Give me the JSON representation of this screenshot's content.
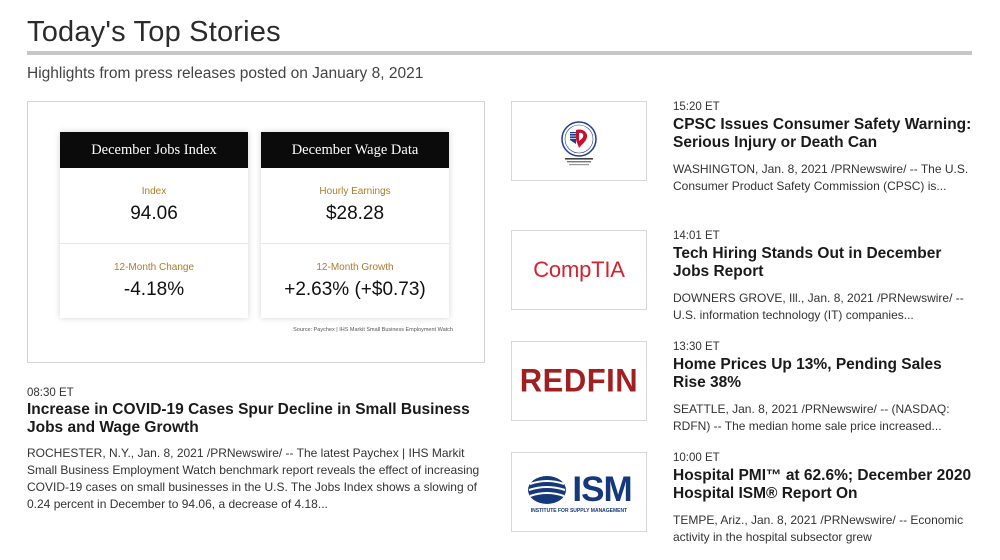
{
  "page": {
    "title": "Today's Top Stories",
    "subtitle": "Highlights from press releases posted on January 8, 2021"
  },
  "featured": {
    "image": {
      "cards": [
        {
          "header": "December Jobs Index",
          "top_label": "Index",
          "top_value": "94.06",
          "bottom_label": "12-Month Change",
          "bottom_value": "-4.18%"
        },
        {
          "header": "December Wage Data",
          "top_label": "Hourly Earnings",
          "top_value": "$28.28",
          "bottom_label": "12-Month Growth",
          "bottom_value": "+2.63% (+$0.73)"
        }
      ],
      "source": "Source: Paychex | IHS Markit Small Business Employment Watch"
    },
    "time": "08:30 ET",
    "headline": "Increase in COVID-19 Cases Spur Decline in Small Business Jobs and Wage Growth",
    "summary": "ROCHESTER, N.Y., Jan. 8, 2021 /PRNewswire/ -- The latest Paychex | IHS Markit Small Business Employment Watch benchmark report reveals the effect of increasing COVID-19 cases on small businesses in the U.S. The Jobs Index shows a slowing of 0.24 percent in December to 94.06, a decrease of 4.18..."
  },
  "stories": [
    {
      "logo": "cpsc-seal-icon",
      "time": "15:20 ET",
      "headline": "CPSC Issues Consumer Safety Warning: Serious Injury or Death Can",
      "summary": "WASHINGTON, Jan. 8, 2021 /PRNewswire/ -- The U.S. Consumer Product Safety Commission (CPSC) is..."
    },
    {
      "logo": "comptia-logo",
      "logo_text": "CompTIA",
      "time": "14:01 ET",
      "headline": "Tech Hiring Stands Out in December Jobs Report",
      "summary": "DOWNERS GROVE, Ill., Jan. 8, 2021 /PRNewswire/ -- U.S. information technology (IT) companies..."
    },
    {
      "logo": "redfin-logo",
      "logo_text": "REDFIN",
      "time": "13:30 ET",
      "headline": "Home Prices Up 13%, Pending Sales Rise 38%",
      "summary": "SEATTLE, Jan. 8, 2021 /PRNewswire/ -- (NASDAQ: RDFN) -- The median home sale price increased..."
    },
    {
      "logo": "ism-logo",
      "logo_text": "ISM",
      "logo_subtext": "INSTITUTE FOR SUPPLY MANAGEMENT",
      "time": "10:00 ET",
      "headline": "Hospital PMI™ at 62.6%; December 2020 Hospital ISM® Report On",
      "summary": "TEMPE, Ariz., Jan. 8, 2021 /PRNewswire/ -- Economic activity in the hospital subsector grew"
    }
  ],
  "colors": {
    "card_header": "#0b0b0b",
    "card_label": "#b07a2a",
    "comptia_red": "#d4232f",
    "redfin_red": "#a02021",
    "ism_blue": "#15387a"
  }
}
